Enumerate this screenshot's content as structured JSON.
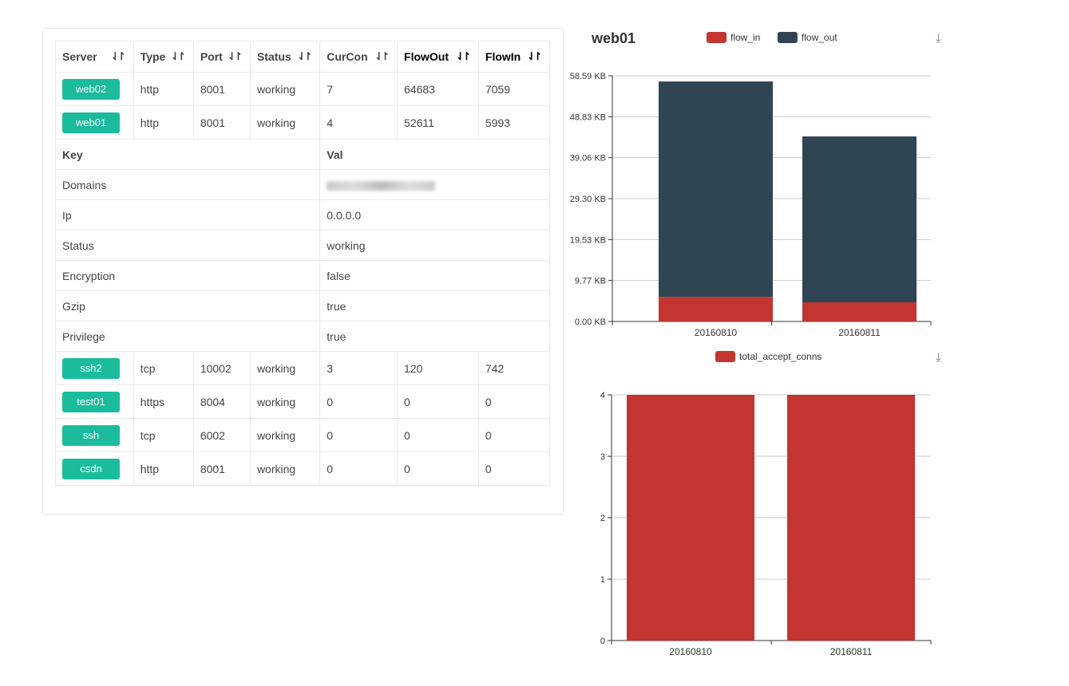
{
  "table": {
    "headers": [
      "Server",
      "Type",
      "Port",
      "Status",
      "CurCon",
      "FlowOut",
      "FlowIn"
    ],
    "rows_top": [
      {
        "server": "web02",
        "type": "http",
        "port": "8001",
        "status": "working",
        "curcon": "7",
        "flowout": "64683",
        "flowin": "7059"
      },
      {
        "server": "web01",
        "type": "http",
        "port": "8001",
        "status": "working",
        "curcon": "4",
        "flowout": "52611",
        "flowin": "5993"
      }
    ],
    "detail": {
      "key_header": "Key",
      "val_header": "Val",
      "rows": [
        {
          "key": "Domains",
          "val": ""
        },
        {
          "key": "Ip",
          "val": "0.0.0.0"
        },
        {
          "key": "Status",
          "val": "working"
        },
        {
          "key": "Encryption",
          "val": "false"
        },
        {
          "key": "Gzip",
          "val": "true"
        },
        {
          "key": "Privilege",
          "val": "true"
        }
      ]
    },
    "rows_bottom": [
      {
        "server": "ssh2",
        "type": "tcp",
        "port": "10002",
        "status": "working",
        "curcon": "3",
        "flowout": "120",
        "flowin": "742"
      },
      {
        "server": "test01",
        "type": "https",
        "port": "8004",
        "status": "working",
        "curcon": "0",
        "flowout": "0",
        "flowin": "0"
      },
      {
        "server": "ssh",
        "type": "tcp",
        "port": "6002",
        "status": "working",
        "curcon": "0",
        "flowout": "0",
        "flowin": "0"
      },
      {
        "server": "csdn",
        "type": "http",
        "port": "8001",
        "status": "working",
        "curcon": "0",
        "flowout": "0",
        "flowin": "0"
      }
    ]
  },
  "chart_title": "web01",
  "chart_data": [
    {
      "type": "bar",
      "stacked": true,
      "categories": [
        "20160810",
        "20160811"
      ],
      "series": [
        {
          "name": "flow_in",
          "color": "#c23531",
          "values": [
            5.85,
            4.57
          ]
        },
        {
          "name": "flow_out",
          "color": "#2f4554",
          "values": [
            51.38,
            39.55
          ]
        }
      ],
      "yunit": "KB",
      "ylim": [
        0,
        58.59
      ],
      "yticks": [
        "0.00 KB",
        "9.77 KB",
        "19.53 KB",
        "29.30 KB",
        "39.06 KB",
        "48.83 KB",
        "58.59 KB"
      ],
      "grid": true,
      "legend": "top"
    },
    {
      "type": "bar",
      "categories": [
        "20160810",
        "20160811"
      ],
      "series": [
        {
          "name": "total_accept_conns",
          "color": "#c23531",
          "values": [
            4,
            4
          ]
        }
      ],
      "ylim": [
        0,
        4
      ],
      "yticks": [
        "0",
        "1",
        "2",
        "3",
        "4"
      ],
      "grid": true,
      "legend": "top"
    }
  ],
  "icons": {
    "sort": "sort-icon",
    "download": "download-icon"
  }
}
